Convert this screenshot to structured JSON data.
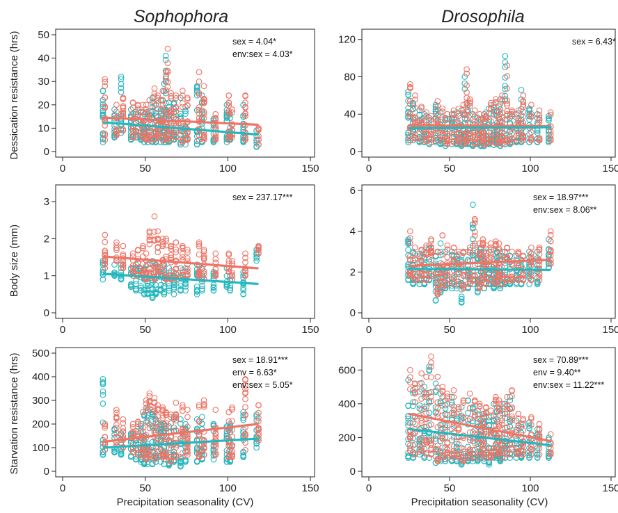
{
  "colors": {
    "female": "#EE7466",
    "male": "#25B7BE"
  },
  "column_titles": [
    "Sophophora",
    "Drosophila"
  ],
  "ylabels": [
    "Dessication resistance (hrs)",
    "Body size (mm)",
    "Starvation resistance (hrs)"
  ],
  "xlabels": [
    "Precipitation seasonality (CV)",
    "Precipitation seasonality (CV)"
  ],
  "chart_data": [
    {
      "type": "scatter",
      "group": "Sophophora",
      "trait": "Dessication resistance (hrs)",
      "xlim": [
        0,
        150
      ],
      "ylim": [
        0,
        50
      ],
      "xticks": [
        0,
        50,
        100,
        150
      ],
      "yticks": [
        0,
        10,
        20,
        30,
        40,
        50
      ],
      "annotations": [
        "sex = 4.04*",
        "env:sex = 4.03*"
      ],
      "x": [
        25,
        32,
        36,
        42,
        45,
        48,
        50,
        52,
        55,
        57,
        60,
        62,
        63,
        65,
        68,
        72,
        75,
        82,
        85,
        92,
        100,
        102,
        110,
        118
      ],
      "series": [
        {
          "sex": "female",
          "name": "",
          "ymin": [
            5,
            7,
            9,
            6,
            7,
            6,
            5,
            5,
            5,
            6,
            5,
            5,
            5,
            5,
            6,
            4,
            5,
            5,
            5,
            5,
            5,
            6,
            5,
            3
          ],
          "ymax": [
            31,
            20,
            23,
            21,
            20,
            20,
            20,
            22,
            27,
            24,
            26,
            34,
            44,
            25,
            24,
            26,
            23,
            34,
            28,
            16,
            24,
            18,
            24,
            10
          ],
          "fit": [
            14.5,
            11.5
          ]
        },
        {
          "sex": "male",
          "name": "",
          "ymin": [
            4,
            6,
            8,
            5,
            6,
            5,
            4,
            4,
            4,
            4,
            4,
            4,
            4,
            4,
            5,
            3,
            3,
            3,
            4,
            4,
            4,
            5,
            4,
            2
          ],
          "ymax": [
            26,
            18,
            32,
            18,
            17,
            17,
            16,
            17,
            23,
            20,
            22,
            29,
            41,
            21,
            21,
            23,
            19,
            28,
            24,
            14,
            20,
            16,
            20,
            9
          ],
          "fit": [
            12.5,
            7.3
          ]
        }
      ]
    },
    {
      "type": "scatter",
      "group": "Drosophila",
      "trait": "Dessication resistance (hrs)",
      "xlim": [
        0,
        150
      ],
      "ylim": [
        0,
        125
      ],
      "xticks": [
        0,
        50,
        100,
        150
      ],
      "yticks": [
        0,
        40,
        80,
        120
      ],
      "annotations": [
        "sex = 6.43*"
      ],
      "x": [
        25,
        28,
        32,
        35,
        38,
        42,
        45,
        48,
        52,
        55,
        58,
        60,
        62,
        65,
        68,
        70,
        72,
        75,
        78,
        80,
        82,
        85,
        88,
        92,
        95,
        100,
        105,
        112
      ],
      "series": [
        {
          "sex": "female",
          "name": "",
          "ymin": [
            12,
            14,
            12,
            11,
            10,
            12,
            10,
            8,
            10,
            10,
            8,
            10,
            10,
            8,
            10,
            8,
            8,
            10,
            9,
            10,
            8,
            10,
            10,
            12,
            12,
            12,
            12,
            12
          ],
          "ymax": [
            72,
            60,
            48,
            42,
            38,
            54,
            46,
            40,
            44,
            46,
            50,
            88,
            56,
            44,
            40,
            36,
            42,
            52,
            56,
            48,
            60,
            92,
            44,
            44,
            60,
            50,
            44,
            42
          ],
          "fit": [
            28,
            27
          ]
        },
        {
          "sex": "male",
          "name": "",
          "ymin": [
            10,
            12,
            10,
            10,
            8,
            10,
            8,
            6,
            8,
            8,
            6,
            8,
            8,
            6,
            8,
            6,
            6,
            8,
            7,
            8,
            6,
            8,
            8,
            10,
            10,
            10,
            10,
            10
          ],
          "ymax": [
            64,
            52,
            44,
            40,
            36,
            50,
            42,
            36,
            40,
            42,
            44,
            80,
            50,
            40,
            36,
            34,
            40,
            46,
            50,
            44,
            56,
            102,
            40,
            40,
            66,
            46,
            40,
            38
          ],
          "fit": [
            25,
            26
          ]
        }
      ]
    },
    {
      "type": "scatter",
      "group": "Sophophora",
      "trait": "Body size (mm)",
      "xlim": [
        0,
        150
      ],
      "ylim": [
        0,
        3.3
      ],
      "xticks": [
        0,
        50,
        100,
        150
      ],
      "yticks": [
        0,
        1,
        2,
        3
      ],
      "annotations": [
        "sex = 237.17***"
      ],
      "x": [
        25,
        32,
        36,
        42,
        45,
        48,
        50,
        52,
        55,
        57,
        60,
        62,
        65,
        68,
        72,
        75,
        82,
        85,
        92,
        100,
        102,
        110,
        118
      ],
      "series": [
        {
          "sex": "female",
          "name": "",
          "ymin": [
            1.2,
            1.4,
            1.2,
            1.0,
            1.0,
            1.0,
            0.9,
            1.0,
            0.9,
            1.0,
            1.0,
            0.9,
            0.9,
            0.9,
            1.0,
            1.0,
            1.0,
            0.9,
            1.0,
            1.1,
            0.9,
            1.0,
            1.6
          ],
          "ymax": [
            2.1,
            1.9,
            1.8,
            1.6,
            1.7,
            1.8,
            1.6,
            2.2,
            2.6,
            2.2,
            2.0,
            2.0,
            1.8,
            1.9,
            1.8,
            1.7,
            1.9,
            1.7,
            1.6,
            1.6,
            1.4,
            1.6,
            1.8
          ],
          "fit": [
            1.52,
            1.2
          ]
        },
        {
          "sex": "male",
          "name": "",
          "ymin": [
            0.9,
            1.0,
            0.9,
            0.7,
            0.6,
            0.6,
            0.5,
            0.5,
            0.4,
            0.5,
            0.6,
            0.5,
            0.6,
            0.5,
            0.6,
            0.6,
            0.5,
            0.6,
            0.6,
            0.7,
            0.6,
            0.5,
            1.4
          ],
          "ymax": [
            1.4,
            1.3,
            1.3,
            1.2,
            1.3,
            1.2,
            1.2,
            1.3,
            1.4,
            1.3,
            1.2,
            1.3,
            1.2,
            1.1,
            1.2,
            1.2,
            1.3,
            1.2,
            1.1,
            1.2,
            1.0,
            1.1,
            1.7
          ],
          "fit": [
            1.05,
            0.78
          ]
        }
      ]
    },
    {
      "type": "scatter",
      "group": "Drosophila",
      "trait": "Body size (mm)",
      "xlim": [
        0,
        150
      ],
      "ylim": [
        0,
        6
      ],
      "xticks": [
        0,
        50,
        100,
        150
      ],
      "yticks": [
        0,
        2,
        4,
        6
      ],
      "annotations": [
        "sex = 18.97***",
        "env:sex = 8.06**"
      ],
      "x": [
        25,
        28,
        32,
        35,
        38,
        42,
        45,
        48,
        52,
        55,
        58,
        62,
        65,
        68,
        70,
        72,
        75,
        78,
        80,
        82,
        85,
        88,
        92,
        95,
        100,
        105,
        112
      ],
      "series": [
        {
          "sex": "female",
          "name": "",
          "ymin": [
            1.8,
            1.6,
            1.6,
            1.6,
            1.8,
            0.9,
            1.2,
            1.4,
            1.4,
            1.4,
            1.2,
            1.4,
            1.6,
            1.2,
            1.6,
            1.4,
            1.6,
            1.4,
            1.6,
            1.4,
            1.6,
            1.6,
            1.6,
            1.6,
            1.6,
            1.6,
            2.4
          ],
          "ymax": [
            4.0,
            3.2,
            3.1,
            3.3,
            3.6,
            3.0,
            3.8,
            3.3,
            3.2,
            3.0,
            3.0,
            3.2,
            4.6,
            3.4,
            3.6,
            3.3,
            3.4,
            3.5,
            3.4,
            3.0,
            3.2,
            3.0,
            3.0,
            2.8,
            3.2,
            3.2,
            4.0
          ],
          "fit": [
            2.3,
            2.6
          ]
        },
        {
          "sex": "male",
          "name": "",
          "ymin": [
            1.6,
            1.4,
            1.4,
            1.4,
            1.6,
            0.6,
            1.0,
            1.2,
            1.2,
            1.2,
            0.5,
            1.2,
            1.4,
            1.0,
            1.4,
            1.2,
            1.4,
            1.2,
            1.4,
            1.2,
            1.4,
            1.4,
            1.4,
            1.4,
            1.4,
            1.4,
            2.2
          ],
          "ymax": [
            3.6,
            3.0,
            2.9,
            3.0,
            3.3,
            2.8,
            3.4,
            3.0,
            3.0,
            2.8,
            2.8,
            3.0,
            5.3,
            3.0,
            3.2,
            3.0,
            3.0,
            3.1,
            3.0,
            2.8,
            3.0,
            2.8,
            2.8,
            2.6,
            3.0,
            3.0,
            3.6
          ],
          "fit": [
            2.15,
            2.1
          ]
        }
      ]
    },
    {
      "type": "scatter",
      "group": "Sophophora",
      "trait": "Starvation resistance (hrs)",
      "xlim": [
        0,
        150
      ],
      "ylim": [
        0,
        500
      ],
      "xticks": [
        0,
        50,
        100,
        150
      ],
      "yticks": [
        0,
        100,
        200,
        300,
        400,
        500
      ],
      "annotations": [
        "sex = 18.91***",
        "env = 6.63*",
        "env:sex = 5.05*"
      ],
      "x": [
        25,
        32,
        36,
        42,
        45,
        48,
        50,
        52,
        55,
        57,
        60,
        62,
        65,
        68,
        72,
        75,
        82,
        85,
        92,
        100,
        102,
        110,
        118
      ],
      "series": [
        {
          "sex": "female",
          "name": "",
          "ymin": [
            90,
            110,
            100,
            80,
            70,
            60,
            50,
            60,
            50,
            60,
            60,
            50,
            40,
            60,
            60,
            70,
            60,
            70,
            70,
            60,
            60,
            90,
            130
          ],
          "ymax": [
            200,
            260,
            220,
            200,
            210,
            250,
            300,
            330,
            310,
            280,
            270,
            250,
            240,
            290,
            280,
            260,
            280,
            300,
            260,
            250,
            270,
            390,
            280
          ],
          "fit": [
            125,
            200
          ]
        },
        {
          "sex": "male",
          "name": "",
          "ymin": [
            70,
            80,
            70,
            60,
            50,
            40,
            30,
            30,
            30,
            40,
            40,
            30,
            25,
            40,
            20,
            40,
            40,
            50,
            50,
            40,
            40,
            60,
            100
          ],
          "ymax": [
            390,
            180,
            160,
            160,
            170,
            200,
            240,
            270,
            250,
            220,
            200,
            200,
            190,
            230,
            220,
            200,
            220,
            230,
            200,
            190,
            200,
            250,
            240
          ],
          "fit": [
            100,
            138
          ]
        }
      ]
    },
    {
      "type": "scatter",
      "group": "Drosophila",
      "trait": "Starvation resistance (hrs)",
      "xlim": [
        0,
        150
      ],
      "ylim": [
        0,
        700
      ],
      "xticks": [
        0,
        50,
        100,
        150
      ],
      "yticks": [
        0,
        200,
        400,
        600
      ],
      "annotations": [
        "sex = 70.89***",
        "env = 9.40**",
        "env:sex = 11.22***"
      ],
      "x": [
        25,
        28,
        32,
        35,
        38,
        42,
        45,
        48,
        52,
        55,
        58,
        62,
        65,
        68,
        70,
        72,
        75,
        78,
        80,
        82,
        85,
        88,
        92,
        95,
        100,
        105,
        112
      ],
      "series": [
        {
          "sex": "female",
          "name": "",
          "ymin": [
            120,
            100,
            120,
            100,
            100,
            60,
            80,
            80,
            80,
            80,
            60,
            80,
            80,
            80,
            100,
            80,
            80,
            100,
            100,
            80,
            100,
            100,
            100,
            100,
            100,
            100,
            100
          ],
          "ymax": [
            600,
            520,
            580,
            560,
            680,
            560,
            500,
            460,
            480,
            380,
            420,
            460,
            420,
            400,
            340,
            380,
            360,
            440,
            420,
            400,
            440,
            480,
            340,
            310,
            320,
            280,
            220
          ],
          "fit": [
            340,
            180
          ]
        },
        {
          "sex": "male",
          "name": "",
          "ymin": [
            80,
            80,
            100,
            80,
            80,
            50,
            60,
            60,
            60,
            60,
            40,
            60,
            60,
            60,
            80,
            60,
            40,
            80,
            80,
            60,
            80,
            80,
            80,
            80,
            80,
            80,
            80
          ],
          "ymax": [
            540,
            480,
            520,
            500,
            620,
            520,
            460,
            420,
            440,
            340,
            380,
            420,
            380,
            360,
            300,
            340,
            320,
            400,
            380,
            360,
            400,
            440,
            300,
            280,
            290,
            250,
            200
          ],
          "fit": [
            250,
            155
          ]
        }
      ]
    }
  ]
}
